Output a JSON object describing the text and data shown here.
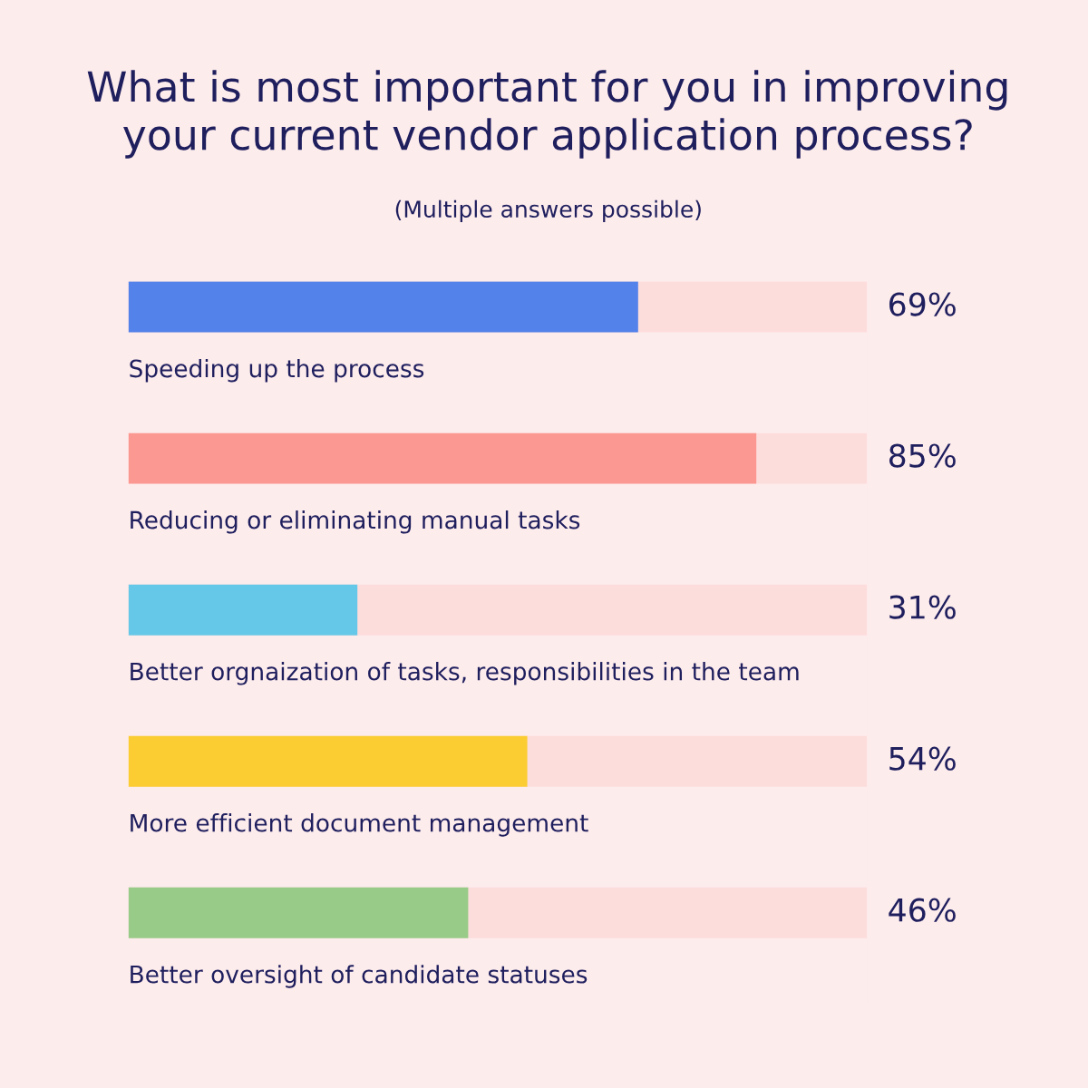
{
  "chart_data": {
    "type": "bar",
    "orientation": "horizontal",
    "title": "What is most important for you in improving\nyour current vendor application process?",
    "subtitle": "(Multiple answers possible)",
    "categories": [
      "Speeding up the process",
      "Reducing or eliminating manual tasks",
      "Better orgnaization of tasks, responsibilities in the team",
      "More efficient document management",
      "Better oversight of candidate statuses"
    ],
    "values": [
      69,
      85,
      31,
      54,
      46
    ],
    "colors": [
      "#5282ea",
      "#fb9891",
      "#66c8e8",
      "#fbcd33",
      "#98cb88"
    ],
    "value_labels": [
      "69%",
      "85%",
      "31%",
      "54%",
      "46%"
    ],
    "xlim": [
      0,
      100
    ],
    "tick_labels": false
  }
}
